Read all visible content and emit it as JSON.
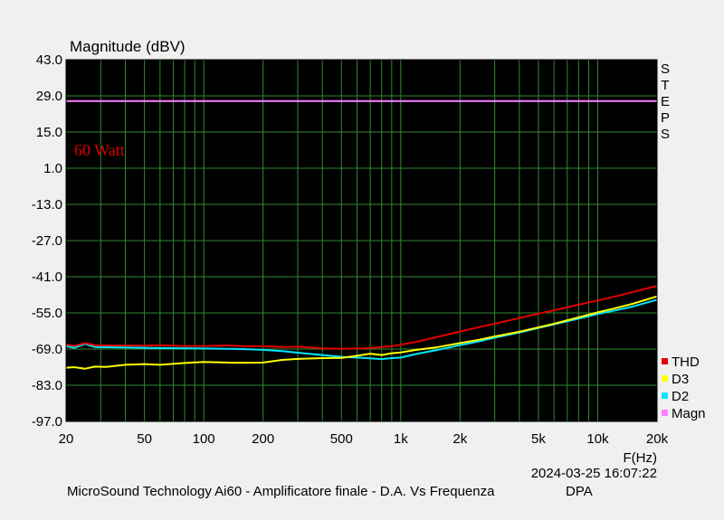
{
  "chart_data": {
    "type": "line",
    "title": "Magnitude (dBV)",
    "xlabel": "F(Hz)",
    "x_scale": "log",
    "xlim": [
      20,
      20000
    ],
    "ylim": [
      -97,
      43
    ],
    "x_ticks": [
      20,
      50,
      100,
      200,
      500,
      1000,
      2000,
      5000,
      10000,
      20000
    ],
    "x_tick_labels": [
      "20",
      "50",
      "100",
      "200",
      "500",
      "1k",
      "2k",
      "5k",
      "10k",
      "20k"
    ],
    "y_ticks": [
      43,
      29,
      15,
      1,
      -13,
      -27,
      -41,
      -55,
      -69,
      -83,
      -97
    ],
    "y_tick_labels": [
      "43.0",
      "29.0",
      "15.0",
      "1.0",
      "-13.0",
      "-27.0",
      "-41.0",
      "-55.0",
      "-69.0",
      "-83.0",
      "-97.0"
    ],
    "grid": true,
    "legend_position": "bottom-right",
    "annotation": "60 Watt",
    "side_label": "STEPS",
    "timestamp": "2024-03-25 16:07:22",
    "footer": "MicroSound Technology Ai60 - Amplificatore finale - D.A. Vs Frequenza",
    "footer_tag": "DPA",
    "series": [
      {
        "name": "THD",
        "color": "#e00000",
        "x": [
          20,
          22,
          25,
          28,
          32,
          40,
          50,
          60,
          80,
          100,
          130,
          160,
          200,
          250,
          300,
          400,
          500,
          600,
          700,
          800,
          900,
          1000,
          1200,
          1500,
          2000,
          2500,
          3000,
          4000,
          5000,
          6000,
          8000,
          10000,
          12000,
          15000,
          20000
        ],
        "y": [
          -67.2,
          -67.8,
          -66.7,
          -67.5,
          -67.6,
          -67.6,
          -67.7,
          -67.5,
          -67.8,
          -67.8,
          -67.6,
          -67.9,
          -67.9,
          -68.2,
          -68.1,
          -68.7,
          -68.9,
          -68.8,
          -68.6,
          -68.2,
          -67.9,
          -67.3,
          -66.2,
          -64.5,
          -62.2,
          -60.5,
          -59.2,
          -57.0,
          -55.3,
          -54.0,
          -51.8,
          -50.2,
          -48.8,
          -47.0,
          -44.5
        ]
      },
      {
        "name": "D3",
        "color": "#ffff00",
        "x": [
          20,
          22,
          25,
          28,
          32,
          40,
          50,
          60,
          80,
          100,
          130,
          160,
          200,
          250,
          300,
          400,
          500,
          600,
          700,
          800,
          900,
          1000,
          1200,
          1500,
          2000,
          2500,
          3000,
          4000,
          5000,
          6000,
          8000,
          10000,
          12000,
          15000,
          20000
        ],
        "y": [
          -76.2,
          -76.0,
          -76.6,
          -75.8,
          -75.9,
          -75.1,
          -74.8,
          -75.1,
          -74.4,
          -74.0,
          -74.2,
          -74.3,
          -74.2,
          -73.2,
          -72.8,
          -72.5,
          -72.4,
          -71.6,
          -70.8,
          -71.3,
          -70.6,
          -70.3,
          -69.3,
          -68.4,
          -66.7,
          -65.4,
          -64.1,
          -62.3,
          -60.6,
          -59.2,
          -56.7,
          -54.8,
          -53.4,
          -51.5,
          -48.6
        ]
      },
      {
        "name": "D2",
        "color": "#00e5ff",
        "x": [
          20,
          22,
          25,
          28,
          32,
          40,
          50,
          60,
          80,
          100,
          130,
          160,
          200,
          250,
          300,
          400,
          500,
          600,
          700,
          800,
          900,
          1000,
          1200,
          1500,
          2000,
          2500,
          3000,
          4000,
          5000,
          6000,
          8000,
          10000,
          12000,
          15000,
          20000
        ],
        "y": [
          -67.8,
          -68.5,
          -67.0,
          -68.2,
          -68.3,
          -68.4,
          -68.5,
          -68.6,
          -68.7,
          -68.8,
          -68.9,
          -69.0,
          -69.3,
          -69.8,
          -70.4,
          -71.3,
          -72.0,
          -72.3,
          -72.6,
          -72.9,
          -72.5,
          -72.3,
          -70.9,
          -69.5,
          -67.5,
          -66.0,
          -64.6,
          -62.6,
          -60.8,
          -59.4,
          -57.2,
          -55.4,
          -54.2,
          -52.6,
          -49.9
        ]
      },
      {
        "name": "Magn",
        "color": "#ff80ff",
        "x": [
          20,
          20000
        ],
        "y": [
          27.0,
          27.0
        ]
      }
    ]
  }
}
